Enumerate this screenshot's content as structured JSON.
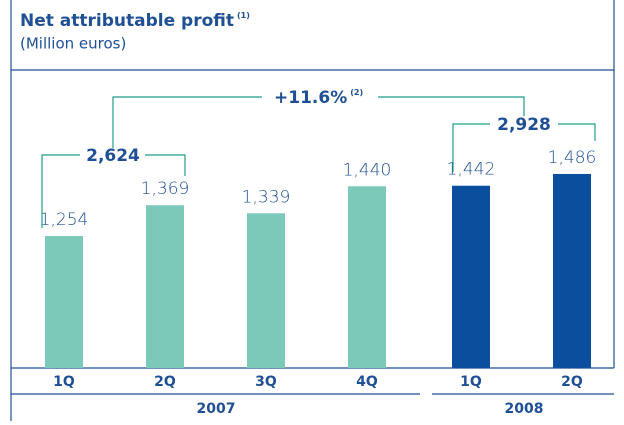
{
  "chart_data": {
    "type": "bar",
    "title": "Net attributable profit",
    "title_note": "(1)",
    "subtitle": "(Million euros)",
    "ylim": [
      760,
      1875
    ],
    "groups": [
      {
        "name": "2007",
        "color": "#7cc8b9",
        "categories": [
          "1Q",
          "2Q",
          "3Q",
          "4Q"
        ],
        "values": [
          1254,
          1369,
          1339,
          1440
        ],
        "value_labels": [
          "1,254",
          "1,369",
          "1,339",
          "1,440"
        ]
      },
      {
        "name": "2008",
        "color": "#0a4f9e",
        "categories": [
          "1Q",
          "2Q"
        ],
        "values": [
          1442,
          1486
        ],
        "value_labels": [
          "1,442",
          "1,486"
        ]
      }
    ],
    "annotations": [
      {
        "value": 2624,
        "label": "2,624"
      },
      {
        "value": 2928,
        "label": "2,928"
      },
      {
        "value": 11.6,
        "label": "+11.6%",
        "note": "(2)"
      }
    ]
  }
}
